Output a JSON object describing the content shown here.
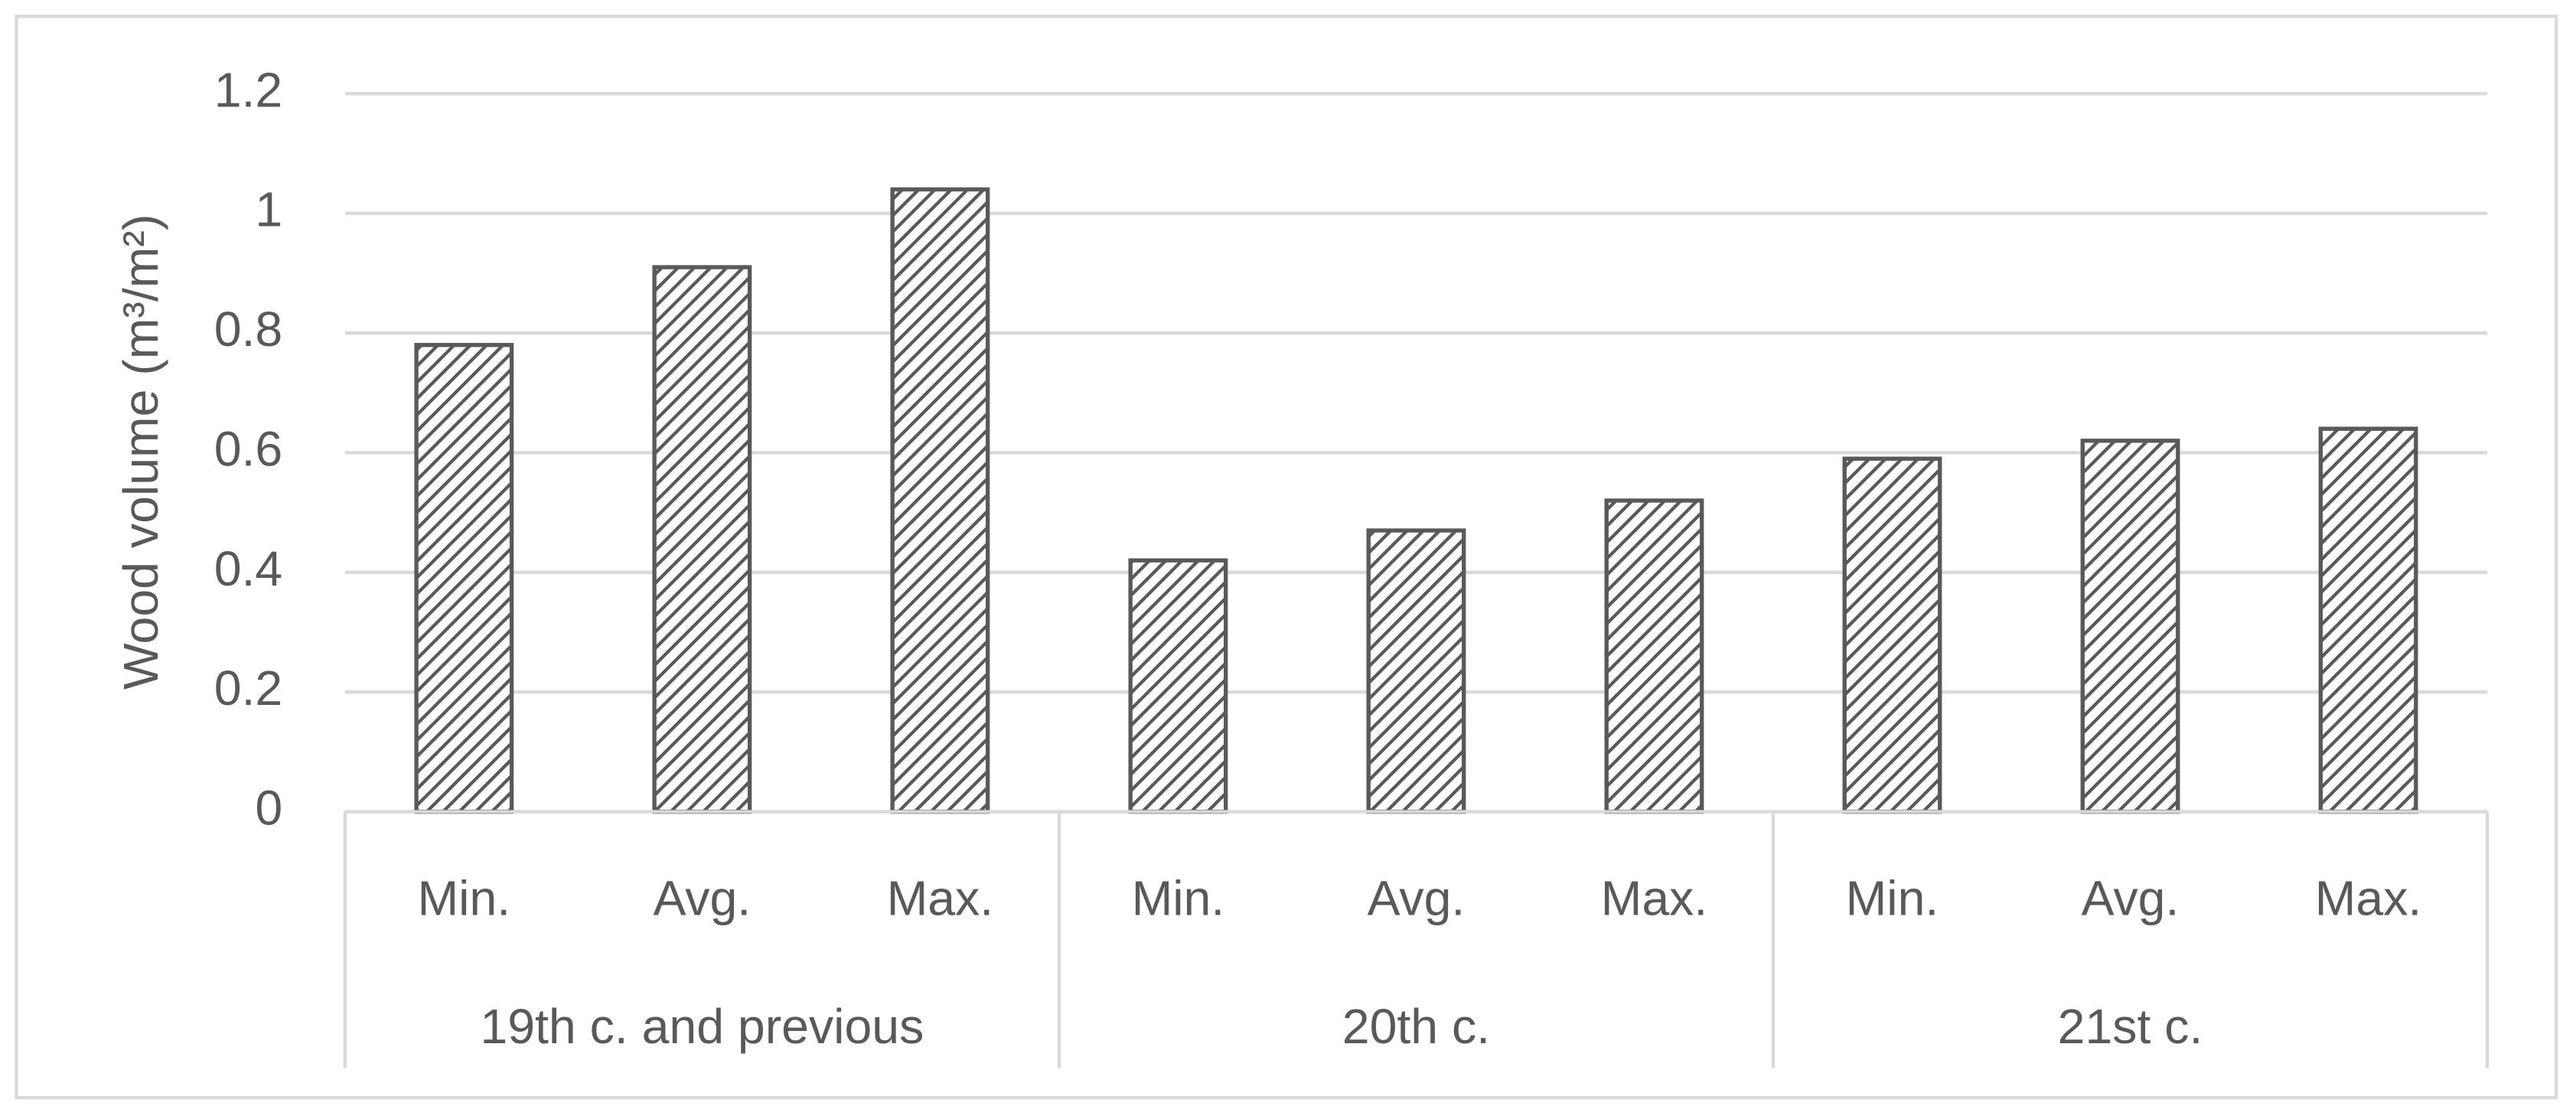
{
  "chart_data": {
    "type": "bar",
    "y_label": "Wood volume (m³/m²)",
    "categories": [
      "Min.",
      "Avg.",
      "Max.",
      "Min.",
      "Avg.",
      "Max.",
      "Min.",
      "Avg.",
      "Max."
    ],
    "category_groups": [
      "19th c. and previous",
      "20th c.",
      "21st c."
    ],
    "values": [
      0.78,
      0.91,
      1.04,
      0.42,
      0.47,
      0.52,
      0.59,
      0.62,
      0.64
    ],
    "color": "#595959",
    "ylim": [
      0,
      1.2
    ],
    "yticks": [
      0,
      0.2,
      0.4,
      0.6,
      0.8,
      1,
      1.2
    ],
    "grid": true
  }
}
